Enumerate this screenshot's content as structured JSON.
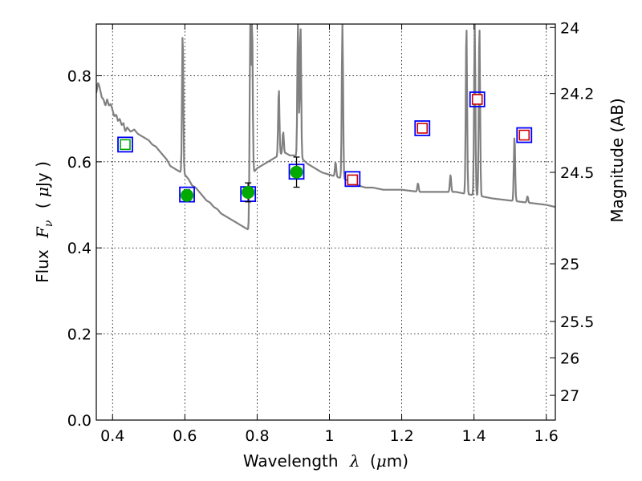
{
  "chart_data": {
    "type": "scatter",
    "xlabel": {
      "text": "Wavelength",
      "symbol": "λ",
      "unit_open": "(",
      "unit_mu": "μ",
      "unit_rest": "m)"
    },
    "ylabel": {
      "text": "Flux",
      "symbol": "F",
      "subscript": "ν",
      "unit_open": "( ",
      "unit_mu": "μ",
      "unit_rest": "Jy )"
    },
    "y2label": "Magnitude (AB)",
    "xlim": [
      0.355,
      1.625
    ],
    "ylim": [
      0.0,
      0.92
    ],
    "grid": true,
    "x_ticks": [
      {
        "value": 0.4,
        "label": "0.4"
      },
      {
        "value": 0.6,
        "label": "0.6"
      },
      {
        "value": 0.8,
        "label": "0.8"
      },
      {
        "value": 1.0,
        "label": "1"
      },
      {
        "value": 1.2,
        "label": "1.2"
      },
      {
        "value": 1.4,
        "label": "1.4"
      },
      {
        "value": 1.6,
        "label": "1.6"
      }
    ],
    "y_ticks": [
      {
        "value": 0.0,
        "label": "0.0"
      },
      {
        "value": 0.2,
        "label": "0.2"
      },
      {
        "value": 0.4,
        "label": "0.4"
      },
      {
        "value": 0.6,
        "label": "0.6"
      },
      {
        "value": 0.8,
        "label": "0.8"
      }
    ],
    "y2_ticks": [
      {
        "value": 24.0,
        "label": "24"
      },
      {
        "value": 24.2,
        "label": "24.2"
      },
      {
        "value": 24.5,
        "label": "24.5"
      },
      {
        "value": 25.0,
        "label": "25"
      },
      {
        "value": 25.5,
        "label": "25.5"
      },
      {
        "value": 26.0,
        "label": "26"
      },
      {
        "value": 27.0,
        "label": "27"
      }
    ],
    "colors": {
      "model": "#808080",
      "model_box": "#0000ff",
      "observed": "#00aa00",
      "upper_limit": "#cc0000",
      "upper_limit_fill": "#ffffff",
      "errorbar": "#000000",
      "grid": "#000000"
    },
    "model_spectrum": {
      "continuum": [
        [
          0.355,
          0.76
        ],
        [
          0.36,
          0.785
        ],
        [
          0.365,
          0.77
        ],
        [
          0.37,
          0.75
        ],
        [
          0.375,
          0.745
        ],
        [
          0.38,
          0.73
        ],
        [
          0.385,
          0.745
        ],
        [
          0.39,
          0.73
        ],
        [
          0.395,
          0.735
        ],
        [
          0.4,
          0.72
        ],
        [
          0.405,
          0.705
        ],
        [
          0.41,
          0.71
        ],
        [
          0.415,
          0.695
        ],
        [
          0.42,
          0.7
        ],
        [
          0.425,
          0.685
        ],
        [
          0.43,
          0.69
        ],
        [
          0.435,
          0.67
        ],
        [
          0.44,
          0.68
        ],
        [
          0.445,
          0.675
        ],
        [
          0.45,
          0.67
        ],
        [
          0.46,
          0.675
        ],
        [
          0.47,
          0.665
        ],
        [
          0.48,
          0.66
        ],
        [
          0.49,
          0.655
        ],
        [
          0.5,
          0.65
        ],
        [
          0.51,
          0.64
        ],
        [
          0.52,
          0.635
        ],
        [
          0.53,
          0.625
        ],
        [
          0.54,
          0.615
        ],
        [
          0.55,
          0.605
        ],
        [
          0.56,
          0.59
        ],
        [
          0.57,
          0.585
        ],
        [
          0.58,
          0.58
        ],
        [
          0.59,
          0.575
        ],
        [
          0.6,
          0.57
        ],
        [
          0.61,
          0.56
        ],
        [
          0.62,
          0.545
        ],
        [
          0.63,
          0.54
        ],
        [
          0.64,
          0.53
        ],
        [
          0.65,
          0.52
        ],
        [
          0.66,
          0.51
        ],
        [
          0.67,
          0.505
        ],
        [
          0.68,
          0.495
        ],
        [
          0.69,
          0.49
        ],
        [
          0.7,
          0.48
        ],
        [
          0.71,
          0.475
        ],
        [
          0.72,
          0.47
        ],
        [
          0.73,
          0.465
        ],
        [
          0.74,
          0.46
        ],
        [
          0.75,
          0.455
        ],
        [
          0.76,
          0.45
        ],
        [
          0.77,
          0.445
        ],
        [
          0.78,
          0.44
        ],
        [
          0.79,
          0.575
        ],
        [
          0.8,
          0.585
        ],
        [
          0.81,
          0.59
        ],
        [
          0.82,
          0.595
        ],
        [
          0.83,
          0.6
        ],
        [
          0.84,
          0.605
        ],
        [
          0.85,
          0.61
        ],
        [
          0.86,
          0.615
        ],
        [
          0.87,
          0.62
        ],
        [
          0.88,
          0.62
        ],
        [
          0.89,
          0.615
        ],
        [
          0.9,
          0.615
        ],
        [
          0.92,
          0.61
        ],
        [
          0.94,
          0.595
        ],
        [
          0.96,
          0.585
        ],
        [
          0.98,
          0.575
        ],
        [
          1.0,
          0.57
        ],
        [
          1.02,
          0.565
        ],
        [
          1.04,
          0.56
        ],
        [
          1.06,
          0.555
        ],
        [
          1.08,
          0.545
        ],
        [
          1.1,
          0.54
        ],
        [
          1.12,
          0.54
        ],
        [
          1.15,
          0.535
        ],
        [
          1.2,
          0.535
        ],
        [
          1.25,
          0.53
        ],
        [
          1.3,
          0.53
        ],
        [
          1.35,
          0.53
        ],
        [
          1.38,
          0.525
        ],
        [
          1.42,
          0.52
        ],
        [
          1.45,
          0.515
        ],
        [
          1.5,
          0.51
        ],
        [
          1.55,
          0.505
        ],
        [
          1.6,
          0.5
        ],
        [
          1.625,
          0.495
        ]
      ],
      "emission_lines": [
        {
          "x": 0.594,
          "peak": 0.9
        },
        {
          "x": 0.781,
          "peak": 0.92
        },
        {
          "x": 0.786,
          "peak": 0.92
        },
        {
          "x": 0.86,
          "peak": 0.77
        },
        {
          "x": 0.872,
          "peak": 0.67
        },
        {
          "x": 0.913,
          "peak": 0.92
        },
        {
          "x": 0.92,
          "peak": 0.92
        },
        {
          "x": 1.017,
          "peak": 0.6
        },
        {
          "x": 1.036,
          "peak": 0.92
        },
        {
          "x": 1.245,
          "peak": 0.55
        },
        {
          "x": 1.335,
          "peak": 0.57
        },
        {
          "x": 1.379,
          "peak": 0.92
        },
        {
          "x": 1.402,
          "peak": 0.92
        },
        {
          "x": 1.415,
          "peak": 0.92
        },
        {
          "x": 1.512,
          "peak": 0.66
        },
        {
          "x": 1.548,
          "peak": 0.52
        }
      ]
    },
    "model_photometry": [
      {
        "x": 0.435,
        "y": 0.64
      },
      {
        "x": 0.606,
        "y": 0.524
      },
      {
        "x": 0.775,
        "y": 0.525
      },
      {
        "x": 0.909,
        "y": 0.577
      },
      {
        "x": 1.064,
        "y": 0.56
      },
      {
        "x": 1.257,
        "y": 0.678
      },
      {
        "x": 1.409,
        "y": 0.745
      },
      {
        "x": 1.539,
        "y": 0.662
      }
    ],
    "observed": [
      {
        "x": 0.606,
        "y": 0.522,
        "err": 0.013
      },
      {
        "x": 0.775,
        "y": 0.529,
        "err": 0.022
      },
      {
        "x": 0.909,
        "y": 0.576,
        "err": 0.035
      }
    ],
    "upper_limits": [
      {
        "x": 0.435,
        "y": 0.64
      },
      {
        "x": 1.064,
        "y": 0.558
      },
      {
        "x": 1.257,
        "y": 0.678
      },
      {
        "x": 1.409,
        "y": 0.745
      },
      {
        "x": 1.539,
        "y": 0.662
      }
    ]
  }
}
